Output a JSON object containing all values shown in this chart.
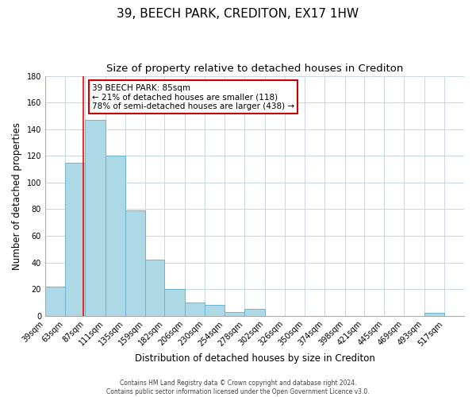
{
  "title": "39, BEECH PARK, CREDITON, EX17 1HW",
  "subtitle": "Size of property relative to detached houses in Crediton",
  "xlabel": "Distribution of detached houses by size in Crediton",
  "ylabel": "Number of detached properties",
  "x_labels": [
    "39sqm",
    "63sqm",
    "87sqm",
    "111sqm",
    "135sqm",
    "159sqm",
    "182sqm",
    "206sqm",
    "230sqm",
    "254sqm",
    "278sqm",
    "302sqm",
    "326sqm",
    "350sqm",
    "374sqm",
    "398sqm",
    "421sqm",
    "445sqm",
    "469sqm",
    "493sqm",
    "517sqm"
  ],
  "bar_heights": [
    22,
    115,
    147,
    120,
    79,
    42,
    20,
    10,
    8,
    3,
    5,
    0,
    0,
    0,
    0,
    0,
    0,
    0,
    0,
    2,
    0
  ],
  "bar_color": "#add8e6",
  "bar_edge_color": "#6db3d0",
  "ylim": [
    0,
    180
  ],
  "yticks": [
    0,
    20,
    40,
    60,
    80,
    100,
    120,
    140,
    160,
    180
  ],
  "red_line_x": 85,
  "bin_edges": [
    39,
    63,
    87,
    111,
    135,
    159,
    182,
    206,
    230,
    254,
    278,
    302,
    326,
    350,
    374,
    398,
    421,
    445,
    469,
    493,
    517,
    541
  ],
  "annotation_title": "39 BEECH PARK: 85sqm",
  "annotation_line1": "← 21% of detached houses are smaller (118)",
  "annotation_line2": "78% of semi-detached houses are larger (438) →",
  "annotation_box_color": "#ffffff",
  "annotation_box_edge_color": "#cc0000",
  "footer_line1": "Contains HM Land Registry data © Crown copyright and database right 2024.",
  "footer_line2": "Contains public sector information licensed under the Open Government Licence v3.0.",
  "background_color": "#ffffff",
  "grid_color": "#c8d8e8",
  "title_fontsize": 11,
  "subtitle_fontsize": 9.5,
  "axis_label_fontsize": 8.5,
  "tick_fontsize": 7,
  "footer_fontsize": 5.5
}
